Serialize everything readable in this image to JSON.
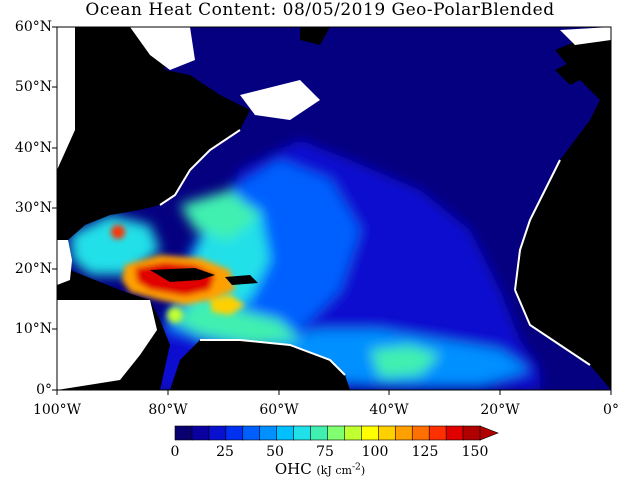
{
  "title": "Ocean Heat Content: 08/05/2019 Geo-PolarBlended",
  "lat_labels": [
    "60°N",
    "50°N",
    "40°N",
    "30°N",
    "20°N",
    "10°N",
    "0°"
  ],
  "lon_labels": [
    "100°W",
    "80°W",
    "60°W",
    "40°W",
    "20°W",
    "0°"
  ],
  "colorbar": {
    "ticks": [
      "0",
      "25",
      "50",
      "75",
      "100",
      "125",
      "150"
    ],
    "label": "OHC",
    "unit": "(kJ cm",
    "unit_exp": "-2",
    "unit_close": ")",
    "colors": [
      "#08006e",
      "#0a00a0",
      "#0a10d0",
      "#0030f0",
      "#0060ff",
      "#0090ff",
      "#00c0ff",
      "#20e0e8",
      "#40f0b0",
      "#80ff70",
      "#c0ff30",
      "#ffff00",
      "#ffd000",
      "#ffa000",
      "#ff7000",
      "#ff3000",
      "#e00000",
      "#b00000"
    ]
  },
  "colors": {
    "land": "#000000",
    "ocean_base": "#050080",
    "background": "#ffffff"
  }
}
